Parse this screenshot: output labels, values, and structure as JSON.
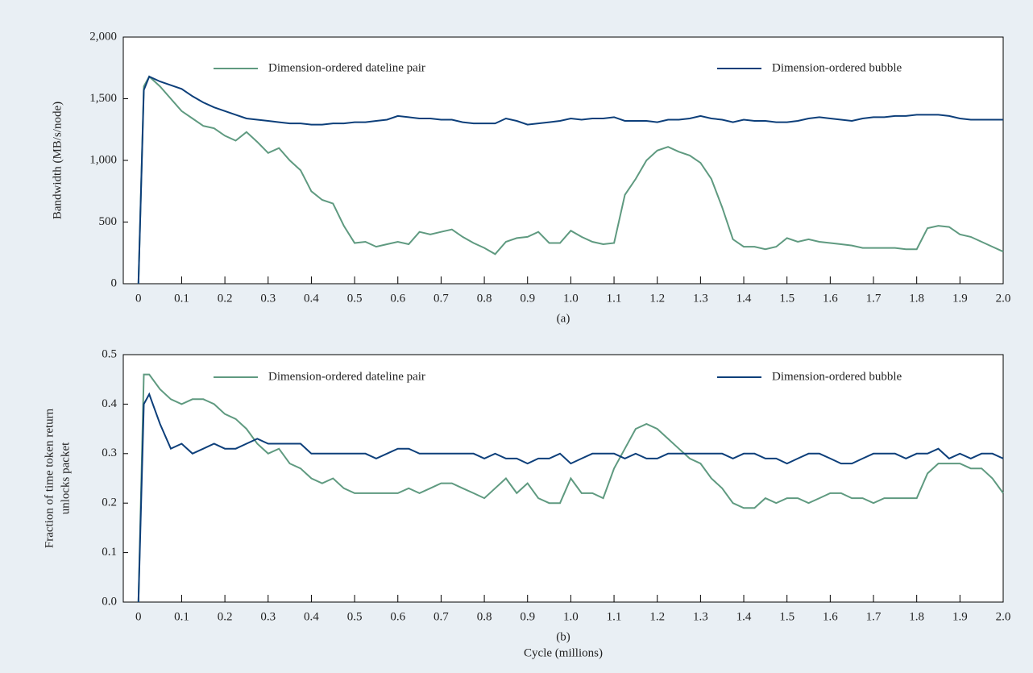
{
  "chart_data": [
    {
      "type": "line",
      "caption": "(a)",
      "ylabel": [
        "Bandwidth  (MB/s/node)"
      ],
      "legend": "top",
      "xlim": [
        -0.035,
        2.0
      ],
      "ylim": [
        0,
        2000
      ],
      "xticks": [
        0,
        0.1,
        0.2,
        0.3,
        0.4,
        0.5,
        0.6,
        0.7,
        0.8,
        0.9,
        {
          "value": 1.0,
          "label": "1.0"
        },
        1.1,
        1.2,
        1.3,
        1.4,
        1.5,
        1.6,
        1.7,
        1.8,
        1.9,
        {
          "value": 2.0,
          "label": "2.0"
        }
      ],
      "yticks": [
        0,
        500,
        {
          "value": 1000,
          "label": "1,000"
        },
        {
          "value": 1500,
          "label": "1,500"
        },
        {
          "value": 2000,
          "label": "2,000"
        }
      ],
      "x": [
        0,
        0.0125,
        0.025,
        0.05,
        0.075,
        0.1,
        0.125,
        0.15,
        0.175,
        0.2,
        0.225,
        0.25,
        0.275,
        0.3,
        0.325,
        0.35,
        0.375,
        0.4,
        0.425,
        0.45,
        0.475,
        0.5,
        0.525,
        0.55,
        0.575,
        0.6,
        0.625,
        0.65,
        0.675,
        0.7,
        0.725,
        0.75,
        0.775,
        0.8,
        0.825,
        0.85,
        0.875,
        0.9,
        0.925,
        0.95,
        0.975,
        1.0,
        1.025,
        1.05,
        1.075,
        1.1,
        1.125,
        1.15,
        1.175,
        1.2,
        1.225,
        1.25,
        1.275,
        1.3,
        1.325,
        1.35,
        1.375,
        1.4,
        1.425,
        1.45,
        1.475,
        1.5,
        1.525,
        1.55,
        1.575,
        1.6,
        1.625,
        1.65,
        1.675,
        1.7,
        1.725,
        1.75,
        1.775,
        1.8,
        1.825,
        1.85,
        1.875,
        1.9,
        1.925,
        1.95,
        1.975,
        2.0
      ],
      "series": [
        {
          "name": "Dimension-ordered dateline pair",
          "color": "#5f9a80",
          "values": [
            0,
            1600,
            1680,
            1600,
            1500,
            1400,
            1340,
            1280,
            1260,
            1200,
            1160,
            1230,
            1150,
            1060,
            1100,
            1000,
            920,
            750,
            680,
            650,
            470,
            330,
            340,
            300,
            320,
            340,
            320,
            420,
            400,
            420,
            440,
            380,
            330,
            290,
            240,
            340,
            370,
            380,
            420,
            330,
            330,
            430,
            380,
            340,
            320,
            330,
            720,
            850,
            1000,
            1080,
            1110,
            1070,
            1040,
            980,
            850,
            620,
            360,
            300,
            300,
            280,
            300,
            370,
            340,
            360,
            340,
            330,
            320,
            310,
            290,
            290,
            290,
            290,
            280,
            280,
            450,
            470,
            460,
            400,
            380,
            340,
            300,
            260
          ]
        },
        {
          "name": "Dimension-ordered bubble",
          "color": "#0d3f7a",
          "values": [
            0,
            1570,
            1680,
            1640,
            1610,
            1580,
            1520,
            1470,
            1430,
            1400,
            1370,
            1340,
            1330,
            1320,
            1310,
            1300,
            1300,
            1290,
            1290,
            1300,
            1300,
            1310,
            1310,
            1320,
            1330,
            1360,
            1350,
            1340,
            1340,
            1330,
            1330,
            1310,
            1300,
            1300,
            1300,
            1340,
            1320,
            1290,
            1300,
            1310,
            1320,
            1340,
            1330,
            1340,
            1340,
            1350,
            1320,
            1320,
            1320,
            1310,
            1330,
            1330,
            1340,
            1360,
            1340,
            1330,
            1310,
            1330,
            1320,
            1320,
            1310,
            1310,
            1320,
            1340,
            1350,
            1340,
            1330,
            1320,
            1340,
            1350,
            1350,
            1360,
            1360,
            1370,
            1370,
            1370,
            1360,
            1340,
            1330,
            1330,
            1330,
            1330
          ]
        }
      ]
    },
    {
      "type": "line",
      "caption": "(b)",
      "xlabel": "Cycle  (millions)",
      "ylabel": [
        "Fraction of time token return",
        "unlocks packet"
      ],
      "legend": "top",
      "xlim": [
        -0.035,
        2.0
      ],
      "ylim": [
        0,
        0.5
      ],
      "xticks": [
        0,
        0.1,
        0.2,
        0.3,
        0.4,
        0.5,
        0.6,
        0.7,
        0.8,
        0.9,
        {
          "value": 1.0,
          "label": "1.0"
        },
        1.1,
        1.2,
        1.3,
        1.4,
        1.5,
        1.6,
        1.7,
        1.8,
        1.9,
        {
          "value": 2.0,
          "label": "2.0"
        }
      ],
      "yticks": [
        {
          "value": 0,
          "label": "0.0"
        },
        0.1,
        0.2,
        0.3,
        0.4,
        0.5
      ],
      "x": [
        0,
        0.0125,
        0.025,
        0.05,
        0.075,
        0.1,
        0.125,
        0.15,
        0.175,
        0.2,
        0.225,
        0.25,
        0.275,
        0.3,
        0.325,
        0.35,
        0.375,
        0.4,
        0.425,
        0.45,
        0.475,
        0.5,
        0.525,
        0.55,
        0.575,
        0.6,
        0.625,
        0.65,
        0.675,
        0.7,
        0.725,
        0.75,
        0.775,
        0.8,
        0.825,
        0.85,
        0.875,
        0.9,
        0.925,
        0.95,
        0.975,
        1.0,
        1.025,
        1.05,
        1.075,
        1.1,
        1.125,
        1.15,
        1.175,
        1.2,
        1.225,
        1.25,
        1.275,
        1.3,
        1.325,
        1.35,
        1.375,
        1.4,
        1.425,
        1.45,
        1.475,
        1.5,
        1.525,
        1.55,
        1.575,
        1.6,
        1.625,
        1.65,
        1.675,
        1.7,
        1.725,
        1.75,
        1.775,
        1.8,
        1.825,
        1.85,
        1.875,
        1.9,
        1.925,
        1.95,
        1.975,
        2.0
      ],
      "series": [
        {
          "name": "Dimension-ordered dateline pair",
          "color": "#5f9a80",
          "values": [
            0,
            0.46,
            0.46,
            0.43,
            0.41,
            0.4,
            0.41,
            0.41,
            0.4,
            0.38,
            0.37,
            0.35,
            0.32,
            0.3,
            0.31,
            0.28,
            0.27,
            0.25,
            0.24,
            0.25,
            0.23,
            0.22,
            0.22,
            0.22,
            0.22,
            0.22,
            0.23,
            0.22,
            0.23,
            0.24,
            0.24,
            0.23,
            0.22,
            0.21,
            0.23,
            0.25,
            0.22,
            0.24,
            0.21,
            0.2,
            0.2,
            0.25,
            0.22,
            0.22,
            0.21,
            0.27,
            0.31,
            0.35,
            0.36,
            0.35,
            0.33,
            0.31,
            0.29,
            0.28,
            0.25,
            0.23,
            0.2,
            0.19,
            0.19,
            0.21,
            0.2,
            0.21,
            0.21,
            0.2,
            0.21,
            0.22,
            0.22,
            0.21,
            0.21,
            0.2,
            0.21,
            0.21,
            0.21,
            0.21,
            0.26,
            0.28,
            0.28,
            0.28,
            0.27,
            0.27,
            0.25,
            0.22
          ]
        },
        {
          "name": "Dimension-ordered bubble",
          "color": "#0d3f7a",
          "values": [
            0,
            0.4,
            0.42,
            0.36,
            0.31,
            0.32,
            0.3,
            0.31,
            0.32,
            0.31,
            0.31,
            0.32,
            0.33,
            0.32,
            0.32,
            0.32,
            0.32,
            0.3,
            0.3,
            0.3,
            0.3,
            0.3,
            0.3,
            0.29,
            0.3,
            0.31,
            0.31,
            0.3,
            0.3,
            0.3,
            0.3,
            0.3,
            0.3,
            0.29,
            0.3,
            0.29,
            0.29,
            0.28,
            0.29,
            0.29,
            0.3,
            0.28,
            0.29,
            0.3,
            0.3,
            0.3,
            0.29,
            0.3,
            0.29,
            0.29,
            0.3,
            0.3,
            0.3,
            0.3,
            0.3,
            0.3,
            0.29,
            0.3,
            0.3,
            0.29,
            0.29,
            0.28,
            0.29,
            0.3,
            0.3,
            0.29,
            0.28,
            0.28,
            0.29,
            0.3,
            0.3,
            0.3,
            0.29,
            0.3,
            0.3,
            0.31,
            0.29,
            0.3,
            0.29,
            0.3,
            0.3,
            0.29
          ]
        }
      ]
    }
  ]
}
